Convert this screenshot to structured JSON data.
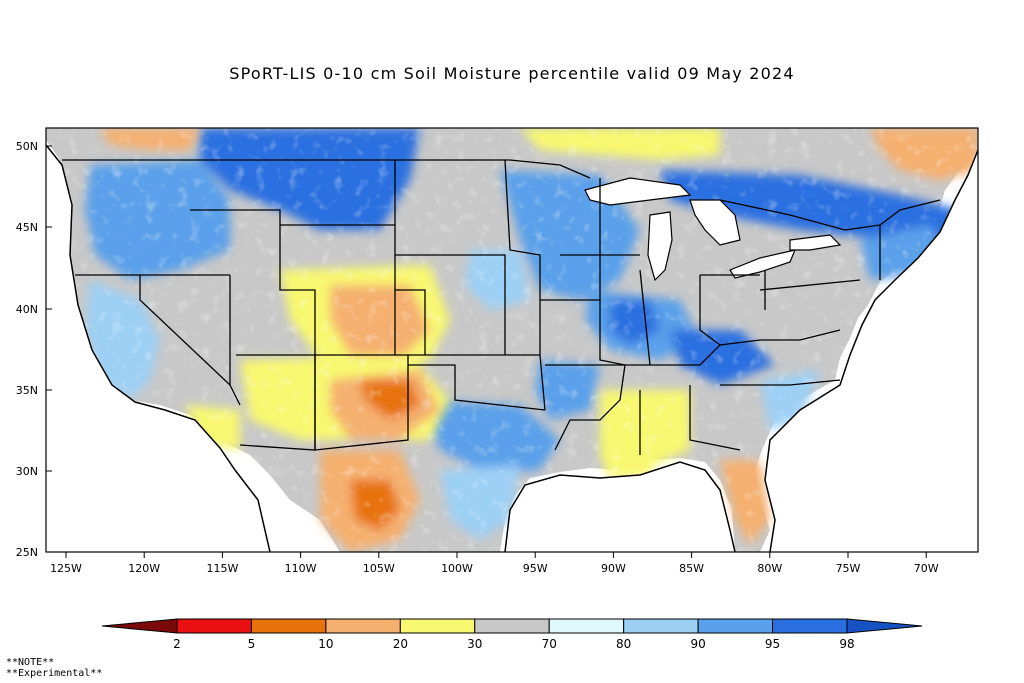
{
  "title": "SPoRT-LIS 0-10 cm Soil Moisture percentile valid 09 May 2024",
  "map": {
    "lat_ticks": [
      "50N",
      "45N",
      "40N",
      "35N",
      "30N",
      "25N"
    ],
    "lon_ticks": [
      "125W",
      "120W",
      "115W",
      "110W",
      "105W",
      "100W",
      "95W",
      "90W",
      "85W",
      "80W",
      "75W",
      "70W"
    ]
  },
  "colorbar": {
    "labels": [
      "2",
      "5",
      "10",
      "20",
      "30",
      "70",
      "80",
      "90",
      "95",
      "98"
    ],
    "colors": [
      "#7a0a0a",
      "#e81010",
      "#e8720a",
      "#f5b070",
      "#f8f870",
      "#c8c8c8",
      "#dff8fb",
      "#9dd0f5",
      "#5aa0ea",
      "#2a6fe0",
      "#1652c4"
    ]
  },
  "notes": [
    "**NOTE**",
    "**Experimental**"
  ]
}
